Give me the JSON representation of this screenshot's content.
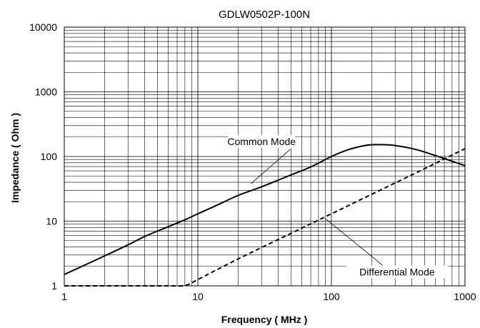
{
  "chart_data": {
    "type": "line",
    "title": "GDLW0502P-100N",
    "xlabel": "Frequency ( MHz )",
    "ylabel": "Impedance ( Ohm )",
    "x_scale": "log",
    "y_scale": "log",
    "xlim": [
      1,
      1000
    ],
    "ylim": [
      1,
      10000
    ],
    "x_ticks": [
      "1",
      "10",
      "100",
      "1000"
    ],
    "y_ticks": [
      "1",
      "10",
      "100",
      "1000",
      "10000"
    ],
    "grid": true,
    "series": [
      {
        "name": "Common Mode",
        "style": "solid",
        "color": "#000000",
        "x": [
          1,
          1.5,
          2,
          3,
          4,
          6,
          8,
          10,
          15,
          20,
          30,
          50,
          70,
          100,
          130,
          170,
          200,
          250,
          300,
          400,
          500,
          700,
          1000
        ],
        "y": [
          1.5,
          2.2,
          2.9,
          4.3,
          5.8,
          8.2,
          10.5,
          13,
          19,
          25,
          34,
          52,
          69,
          100,
          125,
          145,
          152,
          152,
          148,
          133,
          117,
          93,
          72
        ]
      },
      {
        "name": "Differential Mode",
        "style": "dashed",
        "color": "#000000",
        "x": [
          1,
          2,
          4,
          6,
          7.5,
          8.5,
          10,
          20,
          50,
          100,
          200,
          500,
          700,
          1000
        ],
        "y": [
          1,
          1,
          1,
          1,
          1,
          1.05,
          1.25,
          2.6,
          6.5,
          13,
          26,
          65,
          92,
          132
        ]
      }
    ],
    "annotations": [
      {
        "text": "Common Mode",
        "x": 30,
        "y": 150,
        "arrow_to": [
          25,
          38
        ]
      },
      {
        "text": "Differential Mode",
        "x": 310,
        "y": 1.45,
        "arrow_to": [
          90,
          11
        ]
      }
    ]
  }
}
